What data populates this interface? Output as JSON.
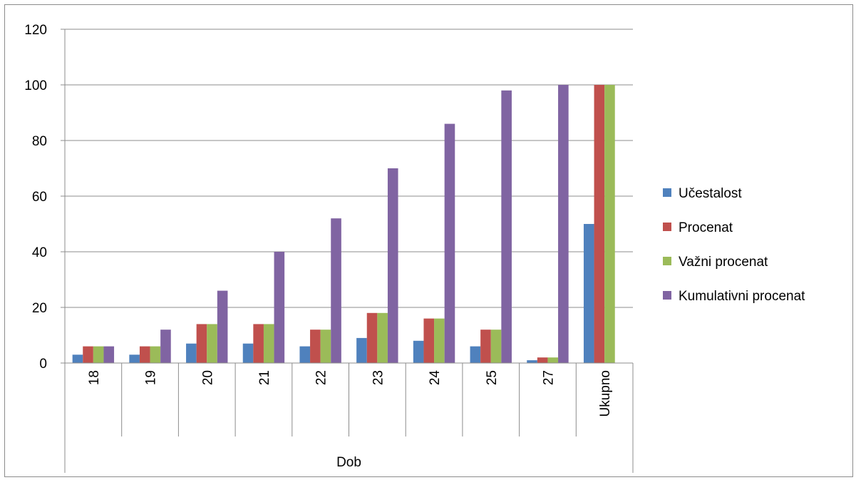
{
  "chart_data": {
    "type": "bar",
    "xlabel": "Dob",
    "ylabel": "",
    "ylim": [
      0,
      120
    ],
    "yticks": [
      "0",
      "20",
      "40",
      "60",
      "80",
      "100",
      "120"
    ],
    "grid": true,
    "legend_position": "right",
    "categories": [
      "18",
      "19",
      "20",
      "21",
      "22",
      "23",
      "24",
      "25",
      "27",
      "Ukupno"
    ],
    "series": [
      {
        "name": "Učestalost",
        "color": "#4f81bd",
        "values": [
          3,
          3,
          7,
          7,
          6,
          9,
          8,
          6,
          1,
          50
        ]
      },
      {
        "name": "Procenat",
        "color": "#c0504d",
        "values": [
          6,
          6,
          14,
          14,
          12,
          18,
          16,
          12,
          2,
          100
        ]
      },
      {
        "name": "Važni procenat",
        "color": "#9bbb59",
        "values": [
          6,
          6,
          14,
          14,
          12,
          18,
          16,
          12,
          2,
          100
        ]
      },
      {
        "name": "Kumulativni procenat",
        "color": "#8064a2",
        "values": [
          6,
          12,
          26,
          40,
          52,
          70,
          86,
          98,
          100,
          null
        ]
      }
    ]
  }
}
